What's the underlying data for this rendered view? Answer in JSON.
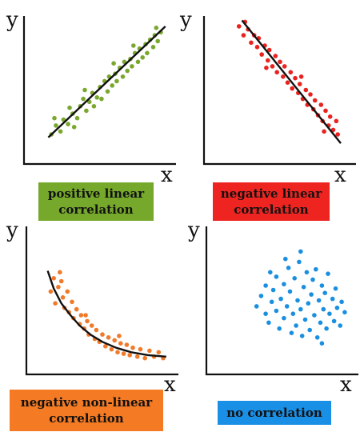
{
  "chart_data": [
    {
      "type": "scatter",
      "title": "positive linear\ncorrelation",
      "xlabel": "x",
      "ylabel": "y",
      "color": "#7aa72e",
      "caption_bg": "#76a82b",
      "xlim": [
        0,
        10
      ],
      "ylim": [
        0,
        10
      ],
      "points": [
        [
          1.8,
          2.0
        ],
        [
          2.1,
          2.6
        ],
        [
          2.4,
          2.2
        ],
        [
          2.6,
          3.0
        ],
        [
          2.9,
          2.7
        ],
        [
          3.2,
          3.4
        ],
        [
          3.0,
          3.8
        ],
        [
          3.5,
          3.1
        ],
        [
          3.7,
          3.9
        ],
        [
          3.9,
          4.4
        ],
        [
          4.1,
          3.6
        ],
        [
          4.3,
          4.2
        ],
        [
          4.5,
          4.8
        ],
        [
          4.6,
          3.9
        ],
        [
          4.8,
          4.5
        ],
        [
          5.0,
          5.2
        ],
        [
          5.1,
          4.4
        ],
        [
          5.3,
          5.6
        ],
        [
          5.5,
          4.9
        ],
        [
          5.6,
          5.9
        ],
        [
          5.8,
          5.3
        ],
        [
          6.0,
          6.1
        ],
        [
          6.1,
          5.6
        ],
        [
          6.3,
          6.5
        ],
        [
          6.5,
          5.9
        ],
        [
          6.6,
          6.9
        ],
        [
          6.8,
          6.3
        ],
        [
          7.0,
          7.1
        ],
        [
          7.1,
          6.6
        ],
        [
          7.3,
          7.5
        ],
        [
          7.5,
          6.9
        ],
        [
          7.6,
          7.8
        ],
        [
          7.8,
          7.2
        ],
        [
          8.0,
          8.1
        ],
        [
          8.1,
          7.5
        ],
        [
          8.3,
          8.4
        ],
        [
          8.5,
          7.9
        ],
        [
          8.6,
          8.7
        ],
        [
          8.8,
          8.3
        ],
        [
          9.0,
          8.9
        ],
        [
          2.0,
          3.1
        ],
        [
          3.3,
          2.5
        ],
        [
          4.0,
          5.0
        ],
        [
          5.9,
          6.8
        ],
        [
          7.2,
          8.0
        ],
        [
          8.7,
          9.2
        ]
      ],
      "trend": {
        "kind": "line",
        "from": [
          1.6,
          1.8
        ],
        "to": [
          9.3,
          9.3
        ]
      }
    },
    {
      "type": "scatter",
      "title": "negative linear\ncorrelation",
      "xlabel": "x",
      "ylabel": "y",
      "color": "#e8231f",
      "caption_bg": "#ee2420",
      "xlim": [
        0,
        10
      ],
      "ylim": [
        0,
        10
      ],
      "points": [
        [
          2.3,
          9.3
        ],
        [
          2.6,
          8.7
        ],
        [
          2.9,
          9.1
        ],
        [
          3.1,
          8.2
        ],
        [
          3.3,
          8.7
        ],
        [
          3.5,
          7.9
        ],
        [
          3.6,
          8.5
        ],
        [
          3.8,
          7.4
        ],
        [
          4.0,
          8.0
        ],
        [
          4.2,
          7.0
        ],
        [
          4.3,
          7.7
        ],
        [
          4.5,
          6.6
        ],
        [
          4.7,
          7.3
        ],
        [
          4.8,
          6.2
        ],
        [
          5.0,
          6.9
        ],
        [
          5.2,
          5.9
        ],
        [
          5.3,
          6.6
        ],
        [
          5.5,
          5.5
        ],
        [
          5.7,
          6.2
        ],
        [
          5.8,
          5.1
        ],
        [
          6.0,
          5.8
        ],
        [
          6.2,
          4.8
        ],
        [
          6.3,
          5.4
        ],
        [
          6.5,
          4.4
        ],
        [
          6.7,
          5.0
        ],
        [
          6.8,
          4.0
        ],
        [
          7.0,
          4.7
        ],
        [
          7.2,
          3.7
        ],
        [
          7.3,
          4.3
        ],
        [
          7.5,
          3.3
        ],
        [
          7.7,
          4.0
        ],
        [
          7.8,
          2.9
        ],
        [
          8.0,
          3.6
        ],
        [
          8.2,
          2.6
        ],
        [
          8.3,
          3.2
        ],
        [
          8.5,
          2.3
        ],
        [
          8.7,
          2.9
        ],
        [
          8.8,
          2.0
        ],
        [
          2.7,
          9.6
        ],
        [
          4.1,
          6.5
        ],
        [
          6.4,
          5.9
        ],
        [
          7.9,
          2.2
        ]
      ],
      "trend": {
        "kind": "line",
        "from": [
          2.5,
          9.7
        ],
        "to": [
          9.0,
          1.4
        ]
      }
    },
    {
      "type": "scatter",
      "title": "negative non-linear\ncorrelation",
      "xlabel": "x",
      "ylabel": "y",
      "color": "#f07a2a",
      "caption_bg": "#f47a24",
      "xlim": [
        0,
        10
      ],
      "ylim": [
        0,
        10
      ],
      "points": [
        [
          1.6,
          5.6
        ],
        [
          1.8,
          6.5
        ],
        [
          1.9,
          4.8
        ],
        [
          2.1,
          5.9
        ],
        [
          2.2,
          6.9
        ],
        [
          2.4,
          5.2
        ],
        [
          2.5,
          4.5
        ],
        [
          2.7,
          5.6
        ],
        [
          2.8,
          4.2
        ],
        [
          3.0,
          4.9
        ],
        [
          3.1,
          3.8
        ],
        [
          3.3,
          4.4
        ],
        [
          3.5,
          3.4
        ],
        [
          3.6,
          4.0
        ],
        [
          3.8,
          3.1
        ],
        [
          4.0,
          3.6
        ],
        [
          4.1,
          2.7
        ],
        [
          4.3,
          3.3
        ],
        [
          4.5,
          2.4
        ],
        [
          4.6,
          3.0
        ],
        [
          4.8,
          2.2
        ],
        [
          5.0,
          2.7
        ],
        [
          5.2,
          1.9
        ],
        [
          5.4,
          2.5
        ],
        [
          5.6,
          1.7
        ],
        [
          5.8,
          2.3
        ],
        [
          6.0,
          1.5
        ],
        [
          6.2,
          2.1
        ],
        [
          6.4,
          1.4
        ],
        [
          6.6,
          2.0
        ],
        [
          6.8,
          1.3
        ],
        [
          7.0,
          1.8
        ],
        [
          7.3,
          1.2
        ],
        [
          7.5,
          1.7
        ],
        [
          7.8,
          1.1
        ],
        [
          8.1,
          1.6
        ],
        [
          8.4,
          1.2
        ],
        [
          8.7,
          1.5
        ],
        [
          9.0,
          1.1
        ],
        [
          2.3,
          6.3
        ],
        [
          3.9,
          4.0
        ],
        [
          6.1,
          2.6
        ]
      ],
      "trend": {
        "kind": "curve",
        "points": [
          [
            1.4,
            7.0
          ],
          [
            1.8,
            5.8
          ],
          [
            2.3,
            4.8
          ],
          [
            2.9,
            4.0
          ],
          [
            3.5,
            3.3
          ],
          [
            4.2,
            2.7
          ],
          [
            5.0,
            2.2
          ],
          [
            5.9,
            1.8
          ],
          [
            6.9,
            1.5
          ],
          [
            8.0,
            1.3
          ],
          [
            9.2,
            1.2
          ]
        ]
      }
    },
    {
      "type": "scatter",
      "title": "no correlation",
      "xlabel": "x",
      "ylabel": "y",
      "color": "#1a8fe0",
      "caption_bg": "#1a8fe6",
      "xlim": [
        0,
        10
      ],
      "ylim": [
        0,
        10
      ],
      "points": [
        [
          3.3,
          4.6
        ],
        [
          3.6,
          5.3
        ],
        [
          3.9,
          4.1
        ],
        [
          3.9,
          6.0
        ],
        [
          4.1,
          3.5
        ],
        [
          4.3,
          4.9
        ],
        [
          4.4,
          5.7
        ],
        [
          4.6,
          6.6
        ],
        [
          4.6,
          4.3
        ],
        [
          4.8,
          3.1
        ],
        [
          4.9,
          5.1
        ],
        [
          5.1,
          6.1
        ],
        [
          5.1,
          3.8
        ],
        [
          5.3,
          4.6
        ],
        [
          5.4,
          7.2
        ],
        [
          5.5,
          5.6
        ],
        [
          5.6,
          2.8
        ],
        [
          5.7,
          4.1
        ],
        [
          5.8,
          6.5
        ],
        [
          5.9,
          3.3
        ],
        [
          6.0,
          5.0
        ],
        [
          6.1,
          7.6
        ],
        [
          6.2,
          4.4
        ],
        [
          6.3,
          2.6
        ],
        [
          6.4,
          5.9
        ],
        [
          6.5,
          3.7
        ],
        [
          6.6,
          6.9
        ],
        [
          6.7,
          4.8
        ],
        [
          6.8,
          3.0
        ],
        [
          6.9,
          5.4
        ],
        [
          7.0,
          6.4
        ],
        [
          7.1,
          4.0
        ],
        [
          7.2,
          7.1
        ],
        [
          7.3,
          2.5
        ],
        [
          7.4,
          5.0
        ],
        [
          7.5,
          3.5
        ],
        [
          7.6,
          6.0
        ],
        [
          7.7,
          4.4
        ],
        [
          7.8,
          5.5
        ],
        [
          7.9,
          3.1
        ],
        [
          8.0,
          6.8
        ],
        [
          8.1,
          4.1
        ],
        [
          8.3,
          5.1
        ],
        [
          8.4,
          3.6
        ],
        [
          8.5,
          5.8
        ],
        [
          8.6,
          4.5
        ],
        [
          8.8,
          3.3
        ],
        [
          8.9,
          4.9
        ],
        [
          9.1,
          4.2
        ],
        [
          5.2,
          7.8
        ],
        [
          6.2,
          8.3
        ],
        [
          4.2,
          6.9
        ],
        [
          7.6,
          2.1
        ]
      ]
    }
  ]
}
